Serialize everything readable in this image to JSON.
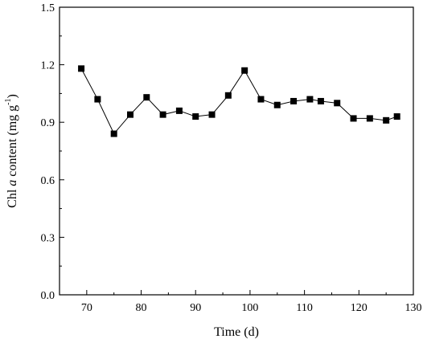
{
  "chart_data": {
    "type": "line",
    "xlabel": "Time (d)",
    "ylabel_parts": [
      "Chl ",
      "a",
      " content (mg g",
      "-1",
      ")"
    ],
    "xlim": [
      65,
      130
    ],
    "ylim": [
      0.0,
      1.5
    ],
    "x_ticks": [
      70,
      80,
      90,
      100,
      110,
      120,
      130
    ],
    "y_ticks": [
      "0.0",
      "0.3",
      "0.6",
      "0.9",
      "1.2",
      "1.5"
    ],
    "grid": false,
    "marker": "square",
    "line_color": "#000000",
    "series": [
      {
        "x": [
          69,
          72,
          75,
          78,
          81,
          84,
          87,
          90,
          93,
          96,
          99,
          102,
          105,
          108,
          111,
          113,
          116,
          119,
          122,
          125,
          127
        ],
        "values": [
          1.18,
          1.02,
          0.84,
          0.94,
          1.03,
          0.94,
          0.96,
          0.93,
          0.94,
          1.04,
          1.17,
          1.02,
          0.99,
          1.01,
          1.02,
          1.01,
          1.0,
          0.92,
          0.92,
          0.91,
          0.93
        ]
      }
    ]
  }
}
